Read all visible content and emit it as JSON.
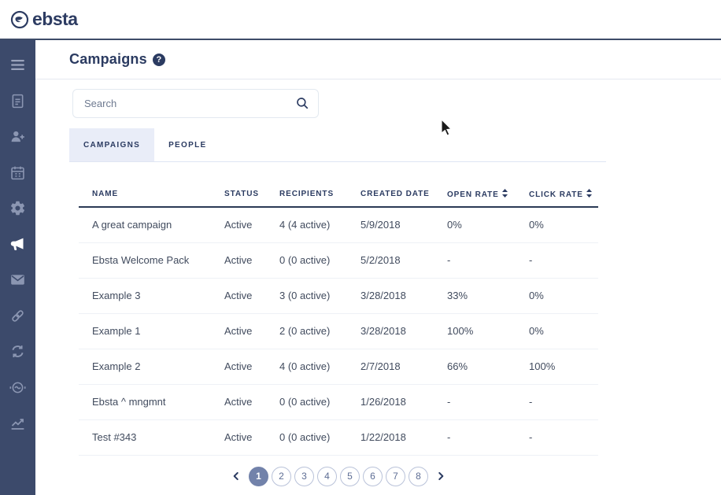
{
  "brand": {
    "logo_text": "ebsta"
  },
  "page": {
    "title": "Campaigns",
    "help_label": "?"
  },
  "search": {
    "placeholder": "Search",
    "value": ""
  },
  "tabs": {
    "campaigns": "CAMPAIGNS",
    "people": "PEOPLE",
    "active_tab": "CAMPAIGNS"
  },
  "sidebar": {
    "items": [
      {
        "id": "hamburger-menu"
      },
      {
        "id": "documents"
      },
      {
        "id": "add-person"
      },
      {
        "id": "calendar"
      },
      {
        "id": "settings"
      },
      {
        "id": "campaigns",
        "active": true
      },
      {
        "id": "email"
      },
      {
        "id": "links"
      },
      {
        "id": "sync"
      },
      {
        "id": "partners"
      },
      {
        "id": "analytics"
      }
    ]
  },
  "table": {
    "columns": [
      {
        "label": "NAME",
        "sortable": false
      },
      {
        "label": "STATUS",
        "sortable": false
      },
      {
        "label": "RECIPIENTS",
        "sortable": false
      },
      {
        "label": "CREATED DATE",
        "sortable": false
      },
      {
        "label": "OPEN RATE",
        "sortable": true
      },
      {
        "label": "CLICK RATE",
        "sortable": true
      }
    ],
    "rows": [
      {
        "name": "A great campaign",
        "status": "Active",
        "recipients": "4 (4 active)",
        "created": "5/9/2018",
        "open_rate": "0%",
        "click_rate": "0%"
      },
      {
        "name": "Ebsta Welcome Pack",
        "status": "Active",
        "recipients": "0 (0 active)",
        "created": "5/2/2018",
        "open_rate": "-",
        "click_rate": "-"
      },
      {
        "name": "Example 3",
        "status": "Active",
        "recipients": "3 (0 active)",
        "created": "3/28/2018",
        "open_rate": "33%",
        "click_rate": "0%"
      },
      {
        "name": "Example 1",
        "status": "Active",
        "recipients": "2 (0 active)",
        "created": "3/28/2018",
        "open_rate": "100%",
        "click_rate": "0%"
      },
      {
        "name": "Example 2",
        "status": "Active",
        "recipients": "4 (0 active)",
        "created": "2/7/2018",
        "open_rate": "66%",
        "click_rate": "100%"
      },
      {
        "name": "Ebsta ^ mngmnt",
        "status": "Active",
        "recipients": "0 (0 active)",
        "created": "1/26/2018",
        "open_rate": "-",
        "click_rate": "-"
      },
      {
        "name": "Test #343",
        "status": "Active",
        "recipients": "0 (0 active)",
        "created": "1/22/2018",
        "open_rate": "-",
        "click_rate": "-"
      }
    ]
  },
  "pagination": {
    "pages": [
      "1",
      "2",
      "3",
      "4",
      "5",
      "6",
      "7",
      "8"
    ],
    "active_page": "1"
  },
  "colors": {
    "sidebar_bg": "#3C4A6B",
    "navy_text": "#2B3B61",
    "topbar_border": "#3D4B68",
    "tab_active_bg": "#E9EDF8",
    "active_page_bg": "#7282AA",
    "row_divider": "#EEF1F6"
  }
}
